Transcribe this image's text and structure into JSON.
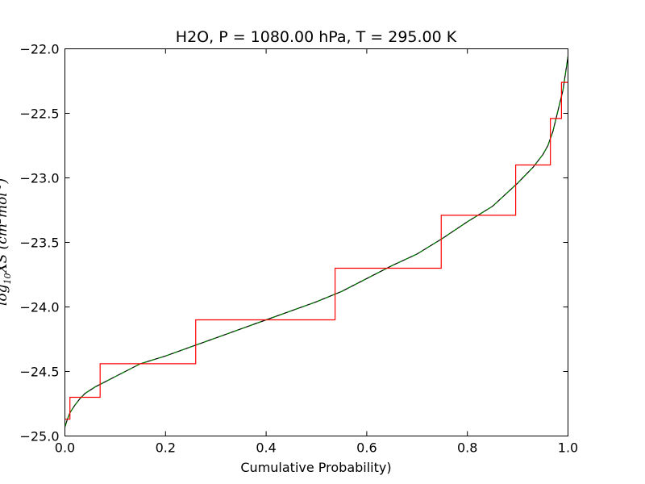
{
  "chart_data": {
    "type": "line",
    "title": "H2O, P = 1080.00 hPa, T = 295.00 K",
    "xlabel": "Cumulative Probability)",
    "ylabel": "log10 XS (cm^2 mol^-1)",
    "ylabel_parts": {
      "pre": "log",
      "sub": "10",
      "mid": "XS (cm",
      "sup1": "2",
      "mid2": "mol",
      "sup2": "-1",
      "post": ")"
    },
    "xlim": [
      0.0,
      1.0
    ],
    "ylim": [
      -25.0,
      -22.0
    ],
    "xticks": [
      0.0,
      0.2,
      0.4,
      0.6,
      0.8,
      1.0
    ],
    "xtick_labels": [
      "0.0",
      "0.2",
      "0.4",
      "0.6",
      "0.8",
      "1.0"
    ],
    "yticks": [
      -25.0,
      -24.5,
      -24.0,
      -23.5,
      -23.0,
      -22.5,
      -22.0
    ],
    "ytick_labels": [
      "−25.0",
      "−24.5",
      "−24.0",
      "−23.5",
      "−23.0",
      "−22.5",
      "−22.0"
    ],
    "grid": false,
    "series": [
      {
        "color": "#000000",
        "style": "solid",
        "x": [
          0.0,
          0.005,
          0.01,
          0.02,
          0.03,
          0.04,
          0.06,
          0.08,
          0.1,
          0.12,
          0.15,
          0.2,
          0.25,
          0.3,
          0.35,
          0.4,
          0.45,
          0.5,
          0.55,
          0.6,
          0.65,
          0.7,
          0.75,
          0.8,
          0.85,
          0.9,
          0.93,
          0.95,
          0.96,
          0.97,
          0.98,
          0.99,
          1.0
        ],
        "y": [
          -24.93,
          -24.87,
          -24.82,
          -24.76,
          -24.71,
          -24.67,
          -24.62,
          -24.58,
          -24.54,
          -24.5,
          -24.44,
          -24.38,
          -24.31,
          -24.24,
          -24.17,
          -24.1,
          -24.03,
          -23.96,
          -23.88,
          -23.78,
          -23.68,
          -23.59,
          -23.47,
          -23.34,
          -23.22,
          -23.04,
          -22.92,
          -22.82,
          -22.75,
          -22.64,
          -22.48,
          -22.32,
          -22.06
        ]
      },
      {
        "color": "#008000",
        "style": "dashed",
        "x": [
          0.0,
          0.005,
          0.01,
          0.02,
          0.03,
          0.04,
          0.06,
          0.08,
          0.1,
          0.12,
          0.15,
          0.2,
          0.25,
          0.3,
          0.35,
          0.4,
          0.45,
          0.5,
          0.55,
          0.6,
          0.65,
          0.7,
          0.75,
          0.8,
          0.85,
          0.9,
          0.93,
          0.95,
          0.96,
          0.97,
          0.98,
          0.99,
          1.0
        ],
        "y": [
          -24.93,
          -24.87,
          -24.82,
          -24.76,
          -24.71,
          -24.67,
          -24.62,
          -24.58,
          -24.54,
          -24.5,
          -24.44,
          -24.38,
          -24.31,
          -24.24,
          -24.17,
          -24.1,
          -24.03,
          -23.96,
          -23.88,
          -23.78,
          -23.68,
          -23.59,
          -23.47,
          -23.34,
          -23.22,
          -23.04,
          -22.92,
          -22.82,
          -22.75,
          -22.64,
          -22.48,
          -22.32,
          -22.06
        ]
      },
      {
        "color": "#ff0000",
        "style": "step",
        "x": [
          0.0,
          0.01,
          0.01,
          0.07,
          0.07,
          0.26,
          0.26,
          0.537,
          0.537,
          0.748,
          0.748,
          0.896,
          0.896,
          0.965,
          0.965,
          0.987,
          0.987,
          1.0
        ],
        "y": [
          -24.87,
          -24.87,
          -24.7,
          -24.7,
          -24.44,
          -24.44,
          -24.1,
          -24.1,
          -23.7,
          -23.7,
          -23.29,
          -23.29,
          -22.9,
          -22.9,
          -22.54,
          -22.54,
          -22.26,
          -22.26
        ]
      }
    ]
  }
}
